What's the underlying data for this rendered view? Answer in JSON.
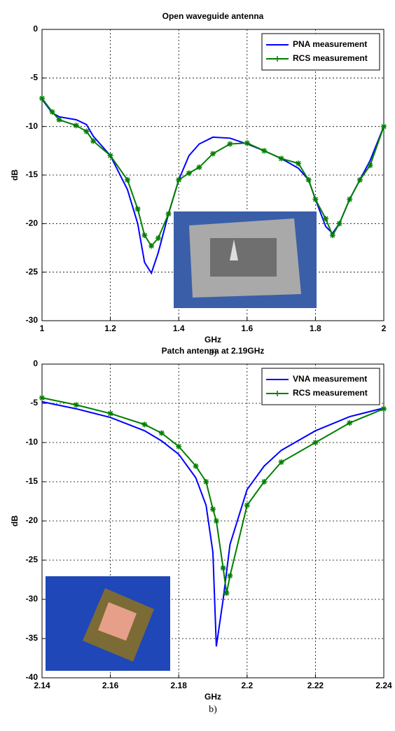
{
  "chart_data": [
    {
      "type": "line",
      "title": "Open waveguide antenna",
      "xlabel": "GHz",
      "ylabel": "dB",
      "caption": "a)",
      "x": [
        1,
        1.03,
        1.05,
        1.1,
        1.13,
        1.15,
        1.2,
        1.25,
        1.28,
        1.3,
        1.32,
        1.34,
        1.37,
        1.4,
        1.43,
        1.46,
        1.5,
        1.55,
        1.6,
        1.65,
        1.7,
        1.75,
        1.78,
        1.8,
        1.83,
        1.85,
        1.87,
        1.9,
        1.93,
        1.96,
        2
      ],
      "series": [
        {
          "name": "PNA measurement",
          "color": "#0000ff",
          "values": [
            -7.2,
            -8.6,
            -9,
            -9.3,
            -9.8,
            -11,
            -13,
            -16.5,
            -20,
            -24,
            -25.1,
            -23,
            -19,
            -15.5,
            -13,
            -11.8,
            -11.1,
            -11.2,
            -11.8,
            -12.5,
            -13.3,
            -14.3,
            -15.5,
            -17.5,
            -20.3,
            -21,
            -20,
            -17.5,
            -15.5,
            -13.5,
            -10
          ]
        },
        {
          "name": "RCS measurement",
          "color": "#007f00",
          "marker": true,
          "values": [
            -7.1,
            -8.5,
            -9.3,
            -9.9,
            -10.5,
            -11.5,
            -13,
            -15.5,
            -18.5,
            -21.2,
            -22.3,
            -21.5,
            -19,
            -15.5,
            -14.8,
            -14.2,
            -12.8,
            -11.8,
            -11.7,
            -12.5,
            -13.3,
            -13.8,
            -15.5,
            -17.5,
            -19.5,
            -21.2,
            -20,
            -17.5,
            -15.5,
            -14,
            -10
          ]
        }
      ],
      "xlim": [
        1,
        2
      ],
      "xticks": [
        1,
        1.2,
        1.4,
        1.6,
        1.8,
        2
      ],
      "ylim": [
        -30,
        0
      ],
      "yticks": [
        -30,
        -25,
        -20,
        -15,
        -10,
        -5,
        0
      ],
      "grid": true,
      "legend": "upper right"
    },
    {
      "type": "line",
      "title": "Patch antenna at 2.19GHz",
      "xlabel": "GHz",
      "ylabel": "dB",
      "caption": "b)",
      "x": [
        2.14,
        2.15,
        2.16,
        2.17,
        2.175,
        2.18,
        2.185,
        2.188,
        2.19,
        2.191,
        2.193,
        2.194,
        2.195,
        2.2,
        2.205,
        2.21,
        2.22,
        2.23,
        2.24
      ],
      "series": [
        {
          "name": "VNA measurement",
          "color": "#0000ff",
          "values": [
            -4.8,
            -5.7,
            -6.8,
            -8.5,
            -9.8,
            -11.5,
            -14.5,
            -18,
            -24,
            -36,
            -30,
            -26.5,
            -23,
            -16,
            -13,
            -11,
            -8.5,
            -6.7,
            -5.6
          ]
        },
        {
          "name": "RCS measurement",
          "color": "#007f00",
          "marker": true,
          "values": [
            -4.3,
            -5.2,
            -6.3,
            -7.7,
            -8.8,
            -10.5,
            -13,
            -15,
            -18.5,
            -20,
            -26,
            -29.2,
            -27,
            -18,
            -15,
            -12.5,
            -10,
            -7.5,
            -5.7
          ]
        }
      ],
      "xlim": [
        2.14,
        2.24
      ],
      "xticks": [
        2.14,
        2.16,
        2.18,
        2.2,
        2.22,
        2.24
      ],
      "ylim": [
        -40,
        0
      ],
      "yticks": [
        -40,
        -35,
        -30,
        -25,
        -20,
        -15,
        -10,
        -5,
        0
      ],
      "grid": true,
      "legend": "upper right"
    }
  ]
}
